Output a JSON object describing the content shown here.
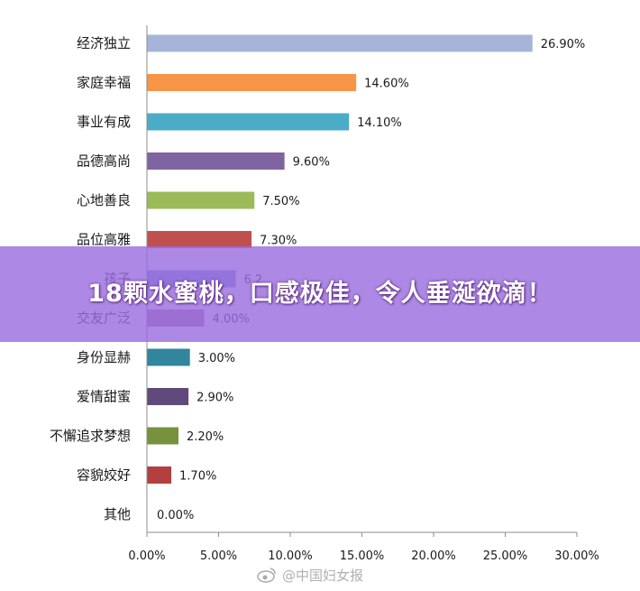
{
  "chart_data": {
    "type": "bar",
    "orientation": "horizontal",
    "categories": [
      "经济独立",
      "家庭幸福",
      "事业有成",
      "品德高尚",
      "心地善良",
      "品位高雅",
      "孩子",
      "交友广泛",
      "身份显赫",
      "爱情甜蜜",
      "不懈追求梦想",
      "容貌姣好",
      "其他"
    ],
    "values": [
      26.9,
      14.6,
      14.1,
      9.6,
      7.5,
      7.3,
      6.2,
      4.0,
      3.0,
      2.9,
      2.2,
      1.7,
      0.0
    ],
    "value_labels": [
      "26.90%",
      "14.60%",
      "14.10%",
      "9.60%",
      "7.50%",
      "7.30%",
      "6.2",
      "4.00%",
      "3.00%",
      "2.90%",
      "2.20%",
      "1.70%",
      "0.00%"
    ],
    "colors": [
      "#a5b4d8",
      "#f79646",
      "#4bacc6",
      "#8064a2",
      "#9bbb59",
      "#c0504d",
      "#6d8fd8",
      "#a872a8",
      "#31859c",
      "#604a7b",
      "#76923c",
      "#b33f3f",
      "#4f81bd"
    ],
    "xlim": [
      0,
      30
    ],
    "x_ticks": [
      "0.00%",
      "5.00%",
      "10.00%",
      "15.00%",
      "20.00%",
      "25.00%",
      "30.00%"
    ],
    "grid": false,
    "title": "",
    "xlabel": "",
    "ylabel": ""
  },
  "overlay": {
    "banner_text": "18颗水蜜桃，口感极佳，令人垂涎欲滴！",
    "banner_color": "#9b6ede"
  },
  "watermark": {
    "text": "@中国妇女报",
    "icon": "weibo-icon"
  }
}
